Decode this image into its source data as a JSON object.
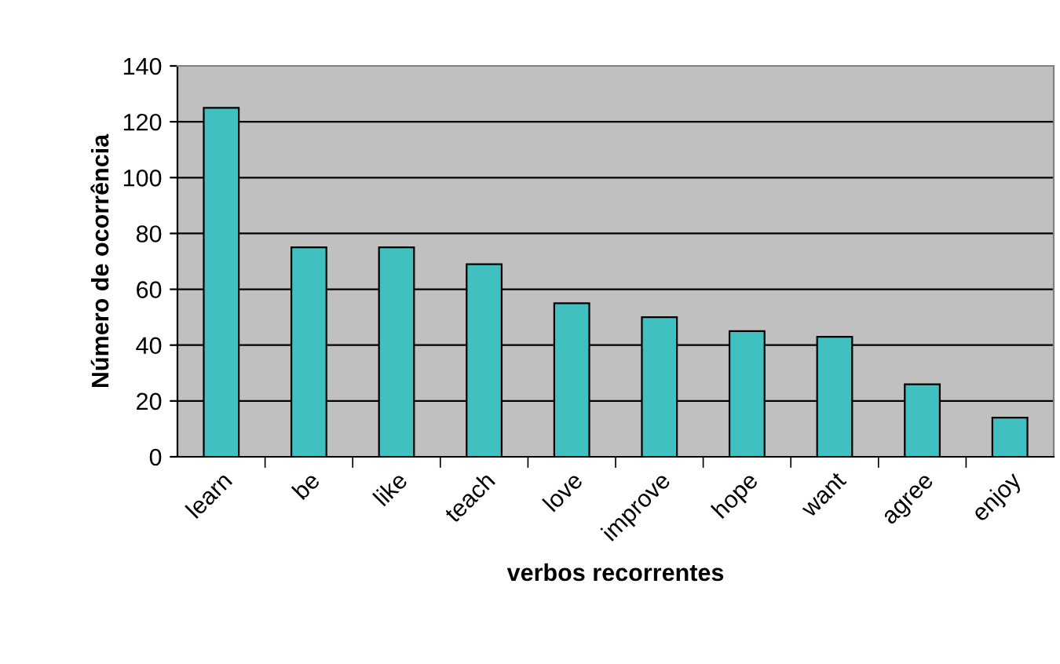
{
  "chart_data": {
    "type": "bar",
    "xlabel": "verbos recorrentes",
    "ylabel": "Número de ocorrência",
    "categories": [
      "learn",
      "be",
      "like",
      "teach",
      "love",
      "improve",
      "hope",
      "want",
      "agree",
      "enjoy"
    ],
    "values": [
      125,
      75,
      75,
      69,
      55,
      50,
      45,
      43,
      26,
      14
    ],
    "color": "#40c0c0",
    "ylim": [
      0,
      140
    ],
    "yticks": [
      0,
      20,
      40,
      60,
      80,
      100,
      120,
      140
    ],
    "grid": "y",
    "legend": false
  }
}
